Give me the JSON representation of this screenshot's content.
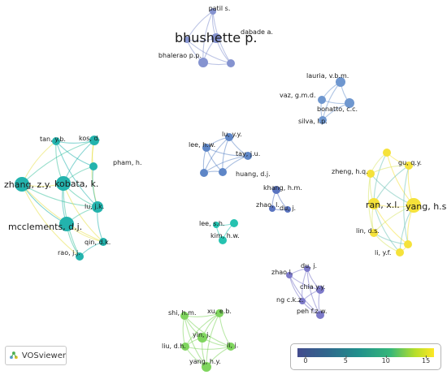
{
  "app": {
    "name": "VOSviewer",
    "logo_icon": "vosviewer-logo-icon"
  },
  "legend": {
    "ticks": [
      "0",
      "5",
      "10",
      "15"
    ],
    "tick_values": [
      0,
      5,
      10,
      15
    ],
    "range": [
      -1,
      16
    ],
    "colormap": [
      "#434b8d",
      "#30688d",
      "#21908c",
      "#35b779",
      "#b5de2b",
      "#fde725"
    ]
  },
  "clusters": [
    {
      "id": "patil",
      "color": "#8593d0",
      "nodes": [
        {
          "label": "patil s."
        },
        {
          "label": "bhushette p."
        },
        {
          "label": "dabade a."
        },
        {
          "label": "bhalerao p.p."
        },
        {
          "label": ""
        }
      ]
    },
    {
      "id": "lauria",
      "color": "#6f97cf",
      "nodes": [
        {
          "label": "lauria, v.b.m."
        },
        {
          "label": "vaz, g.m.d."
        },
        {
          "label": "bonatto, c.c."
        },
        {
          "label": "silva, l.p."
        }
      ]
    },
    {
      "id": "zhang",
      "color": "#23b3ad",
      "nodes": [
        {
          "label": "tan, y.b."
        },
        {
          "label": "kos, d."
        },
        {
          "label": "pham, h."
        },
        {
          "label": "zhang, z.y."
        },
        {
          "label": "kobata, k."
        },
        {
          "label": "lu, j.k."
        },
        {
          "label": "mcclements, d.j."
        },
        {
          "label": "qin, d.k."
        },
        {
          "label": "rao, j.j."
        }
      ]
    },
    {
      "id": "luyy",
      "color": "#5e86c7",
      "nodes": [
        {
          "label": "lu, y.y."
        },
        {
          "label": "lee, h.w."
        },
        {
          "label": "tay, j.u."
        },
        {
          "label": "huang, d.j."
        },
        {
          "label": ""
        }
      ]
    },
    {
      "id": "khang",
      "color": "#5a74c0",
      "nodes": [
        {
          "label": "khang, h.m."
        },
        {
          "label": "zhao, l."
        },
        {
          "label": "du, j."
        }
      ]
    },
    {
      "id": "leesh",
      "color": "#25c2b0",
      "nodes": [
        {
          "label": "lee, s.h."
        },
        {
          "label": ""
        },
        {
          "label": "kim, h.w."
        }
      ]
    },
    {
      "id": "ran",
      "color": "#f5e23a",
      "nodes": [
        {
          "label": ""
        },
        {
          "label": "gu, q.y."
        },
        {
          "label": "zheng, h.q."
        },
        {
          "label": "ran, x.l."
        },
        {
          "label": "yang, h.s."
        },
        {
          "label": "lin, d.s."
        },
        {
          "label": "li, y.f."
        },
        {
          "label": ""
        }
      ]
    },
    {
      "id": "duj",
      "color": "#7c79c9",
      "nodes": [
        {
          "label": "du, j."
        },
        {
          "label": "zhao l."
        },
        {
          "label": "chia y.y."
        },
        {
          "label": "ng c.k.z."
        },
        {
          "label": "peh f.z.w."
        }
      ]
    },
    {
      "id": "shi",
      "color": "#7fd55e",
      "nodes": [
        {
          "label": "shi, h.m."
        },
        {
          "label": "xu, e.b."
        },
        {
          "label": "yin, j."
        },
        {
          "label": "liu, d.h."
        },
        {
          "label": "li, j."
        },
        {
          "label": "yang, h.y."
        }
      ]
    }
  ]
}
